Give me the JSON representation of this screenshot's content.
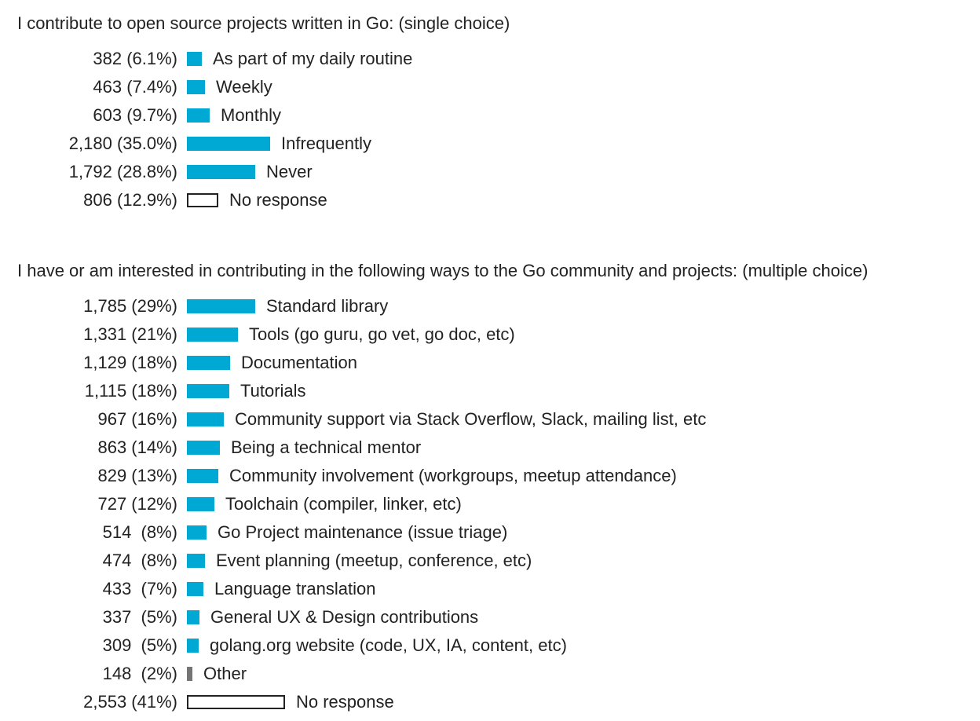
{
  "colors": {
    "bar": "#00a9d4",
    "other": "#757575",
    "no_response_fill": "#ffffff",
    "no_response_border": "#222222",
    "text": "#222222"
  },
  "chart_data": [
    {
      "type": "bar",
      "orientation": "horizontal",
      "title": "I contribute to open source projects written in Go: (single choice)",
      "items": [
        {
          "label": "As part of my daily routine",
          "count_text": "382 (6.1%)",
          "count": 382,
          "percent": 6.1,
          "kind": "normal"
        },
        {
          "label": "Weekly",
          "count_text": "463 (7.4%)",
          "count": 463,
          "percent": 7.4,
          "kind": "normal"
        },
        {
          "label": "Monthly",
          "count_text": "603 (9.7%)",
          "count": 603,
          "percent": 9.7,
          "kind": "normal"
        },
        {
          "label": "Infrequently",
          "count_text": "2,180 (35.0%)",
          "count": 2180,
          "percent": 35.0,
          "kind": "normal"
        },
        {
          "label": "Never",
          "count_text": "1,792 (28.8%)",
          "count": 1792,
          "percent": 28.8,
          "kind": "normal"
        },
        {
          "label": "No response",
          "count_text": "806 (12.9%)",
          "count": 806,
          "percent": 12.9,
          "kind": "no-response"
        }
      ]
    },
    {
      "type": "bar",
      "orientation": "horizontal",
      "title": "I have or am interested in contributing in the following ways to the Go community and projects: (multiple choice)",
      "items": [
        {
          "label": "Standard library",
          "count_text": "1,785 (29%)",
          "count": 1785,
          "percent": 29,
          "kind": "normal"
        },
        {
          "label": "Tools (go guru, go vet, go doc, etc)",
          "count_text": "1,331 (21%)",
          "count": 1331,
          "percent": 21,
          "kind": "normal"
        },
        {
          "label": "Documentation",
          "count_text": "1,129 (18%)",
          "count": 1129,
          "percent": 18,
          "kind": "normal"
        },
        {
          "label": "Tutorials",
          "count_text": "1,115 (18%)",
          "count": 1115,
          "percent": 18,
          "kind": "normal"
        },
        {
          "label": "Community support via Stack Overflow, Slack, mailing list, etc",
          "count_text": "967 (16%)",
          "count": 967,
          "percent": 16,
          "kind": "normal"
        },
        {
          "label": "Being a technical mentor",
          "count_text": "863 (14%)",
          "count": 863,
          "percent": 14,
          "kind": "normal"
        },
        {
          "label": "Community involvement (workgroups, meetup attendance)",
          "count_text": "829 (13%)",
          "count": 829,
          "percent": 13,
          "kind": "normal"
        },
        {
          "label": "Toolchain (compiler, linker, etc)",
          "count_text": "727 (12%)",
          "count": 727,
          "percent": 12,
          "kind": "normal"
        },
        {
          "label": "Go Project maintenance (issue triage)",
          "count_text": "514  (8%)",
          "count": 514,
          "percent": 8,
          "kind": "normal"
        },
        {
          "label": "Event planning (meetup, conference, etc)",
          "count_text": "474  (8%)",
          "count": 474,
          "percent": 8,
          "kind": "normal"
        },
        {
          "label": "Language translation",
          "count_text": "433  (7%)",
          "count": 433,
          "percent": 7,
          "kind": "normal"
        },
        {
          "label": "General UX & Design contributions",
          "count_text": "337  (5%)",
          "count": 337,
          "percent": 5,
          "kind": "normal"
        },
        {
          "label": "golang.org website (code, UX, IA, content, etc)",
          "count_text": "309  (5%)",
          "count": 309,
          "percent": 5,
          "kind": "normal"
        },
        {
          "label": "Other",
          "count_text": "148  (2%)",
          "count": 148,
          "percent": 2,
          "kind": "other"
        },
        {
          "label": "No response",
          "count_text": "2,553 (41%)",
          "count": 2553,
          "percent": 41,
          "kind": "no-response"
        }
      ]
    }
  ]
}
